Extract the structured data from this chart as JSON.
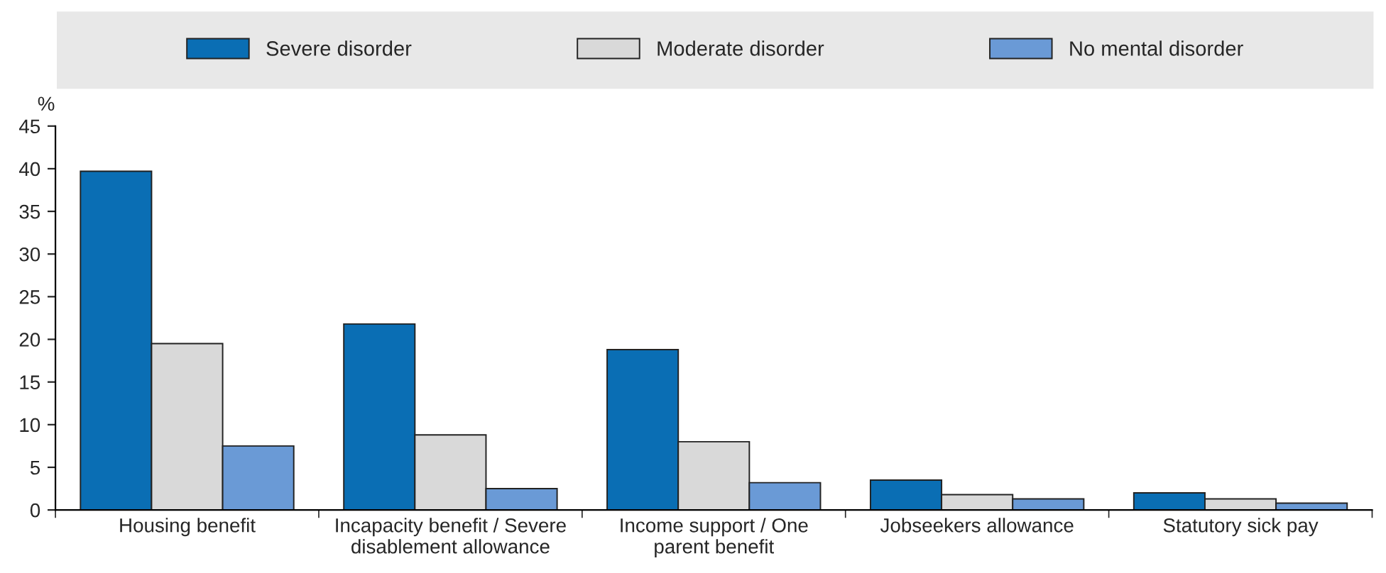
{
  "chart_data": {
    "type": "bar",
    "ylabel": "%",
    "categories": [
      "Housing benefit",
      "Incapacity benefit / Severe\ndisablement allowance",
      "Income support / One\nparent benefit",
      "Jobseekers allowance",
      "Statutory sick pay"
    ],
    "series": [
      {
        "name": "Severe disorder",
        "color": "#0a6eb4",
        "values": [
          39.7,
          21.8,
          18.8,
          3.5,
          2.0
        ]
      },
      {
        "name": "Moderate disorder",
        "color": "#d9d9d9",
        "values": [
          19.5,
          8.8,
          8.0,
          1.8,
          1.3
        ]
      },
      {
        "name": "No mental disorder",
        "color": "#6a9ad6",
        "values": [
          7.5,
          2.5,
          3.2,
          1.3,
          0.8
        ]
      }
    ],
    "ylim": [
      0,
      45
    ],
    "yticks": [
      0,
      5,
      10,
      15,
      20,
      25,
      30,
      35,
      40,
      45
    ],
    "grid": false,
    "legend": "top"
  }
}
